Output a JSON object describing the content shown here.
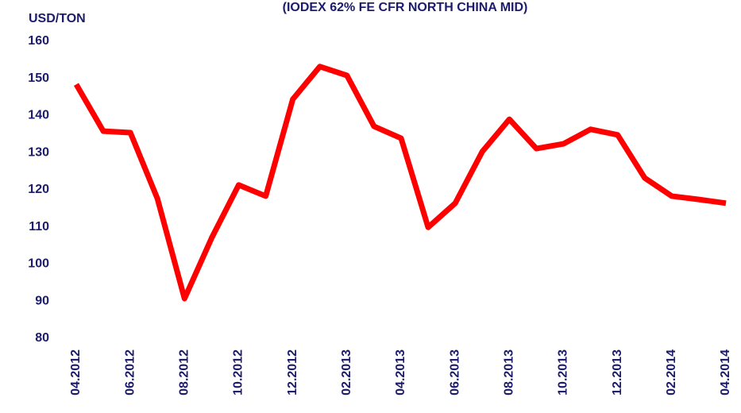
{
  "chart_data": {
    "type": "line",
    "title": "(IODEX 62% FE CFR NORTH CHINA MID)",
    "y_label": "USD/TON",
    "categories": [
      "04.2012",
      null,
      "06.2012",
      null,
      "08.2012",
      null,
      "10.2012",
      null,
      "12.2012",
      null,
      "02.2013",
      null,
      "04.2013",
      null,
      "06.2013",
      null,
      "08.2013",
      null,
      "10.2013",
      null,
      "12.2013",
      null,
      "02.2014",
      null,
      "04.2014"
    ],
    "series": [
      {
        "name": "IODEX 62% Fe",
        "color": "#ff0000",
        "values": [
          148.4,
          135.8,
          135.4,
          117.6,
          90.7,
          107,
          121.3,
          118.3,
          144.4,
          153.2,
          150.8,
          137.1,
          133.9,
          109.9,
          116.4,
          130.3,
          139,
          131.1,
          132.4,
          136.3,
          134.8,
          123.2,
          118.3,
          117.4,
          116.4
        ]
      }
    ],
    "ylim": [
      80,
      160
    ],
    "yticks": [
      80,
      90,
      100,
      110,
      120,
      130,
      140,
      150,
      160
    ],
    "grid": false
  }
}
